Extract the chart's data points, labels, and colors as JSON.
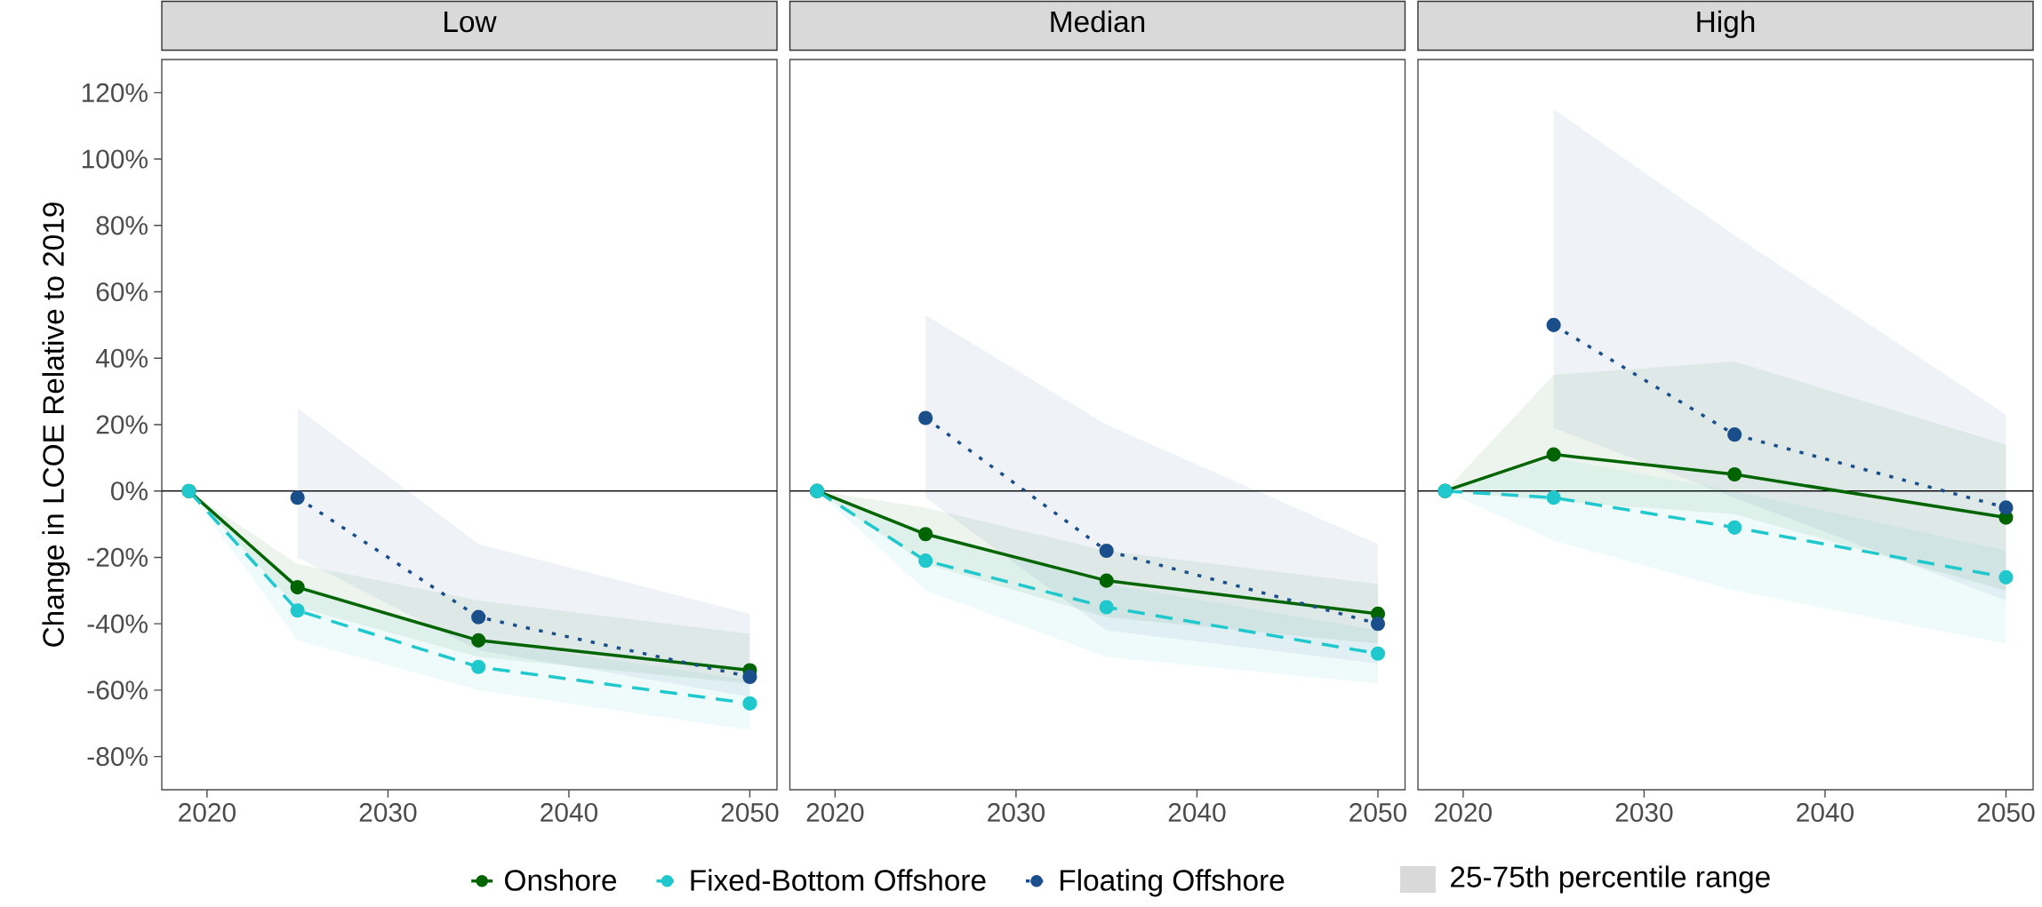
{
  "chart_data": [
    {
      "type": "line",
      "title": "Low",
      "ylabel": "Change in LCOE Relative to 2019",
      "xlim": [
        2017.5,
        2051.5
      ],
      "ylim": [
        -90,
        130
      ],
      "xticks": [
        2020,
        2030,
        2040,
        2050
      ],
      "yticks": [
        {
          "value": -80,
          "label": "-80%"
        },
        {
          "value": -60,
          "label": "-60%"
        },
        {
          "value": -40,
          "label": "-40%"
        },
        {
          "value": -20,
          "label": "-20%"
        },
        {
          "value": 0,
          "label": "0%"
        },
        {
          "value": 20,
          "label": "20%"
        },
        {
          "value": 40,
          "label": "40%"
        },
        {
          "value": 60,
          "label": "60%"
        },
        {
          "value": 80,
          "label": "80%"
        },
        {
          "value": 100,
          "label": "100%"
        },
        {
          "value": 120,
          "label": "120%"
        }
      ],
      "ref_lines": [
        {
          "axis": "y",
          "value": 0
        }
      ],
      "marker": "circle",
      "legend": "bottom",
      "annotations": [
        "25-75th percentile range"
      ],
      "series": [
        {
          "name": "Onshore",
          "color": "#006400",
          "line_style": "solid",
          "x": [
            2019,
            2025,
            2035,
            2050
          ],
          "values": [
            0,
            -29,
            -45,
            -54
          ],
          "lower": [
            0,
            -35,
            -50,
            -58
          ],
          "upper": [
            0,
            -22,
            -33,
            -43
          ]
        },
        {
          "name": "Fixed-Bottom Offshore",
          "color": "#1fc8cc",
          "line_style": "dashed",
          "x": [
            2019,
            2025,
            2035,
            2050
          ],
          "values": [
            0,
            -36,
            -53,
            -64
          ],
          "lower": [
            0,
            -45,
            -60,
            -72
          ],
          "upper": [
            0,
            -28,
            -45,
            -57
          ]
        },
        {
          "name": "Floating Offshore",
          "color": "#1a4f8b",
          "line_style": "dotted",
          "x": [
            2025,
            2035,
            2050
          ],
          "values": [
            -2,
            -38,
            -56
          ],
          "lower": [
            -20,
            -48,
            -62
          ],
          "upper": [
            25,
            -16,
            -37
          ]
        }
      ]
    },
    {
      "type": "line",
      "title": "Median",
      "xlim": [
        2017.5,
        2051.5
      ],
      "ylim": [
        -90,
        130
      ],
      "xticks": [
        2020,
        2030,
        2040,
        2050
      ],
      "tick_labels": "x",
      "ref_lines": [
        {
          "axis": "y",
          "value": 0
        }
      ],
      "marker": "circle",
      "series": [
        {
          "color": "#006400",
          "line_style": "solid",
          "x": [
            2019,
            2025,
            2035,
            2050
          ],
          "values": [
            0,
            -13,
            -27,
            -37
          ],
          "lower": [
            0,
            -22,
            -38,
            -46
          ],
          "upper": [
            0,
            -5,
            -18,
            -28
          ]
        },
        {
          "color": "#1fc8cc",
          "line_style": "dashed",
          "x": [
            2019,
            2025,
            2035,
            2050
          ],
          "values": [
            0,
            -21,
            -35,
            -49
          ],
          "lower": [
            0,
            -30,
            -50,
            -58
          ],
          "upper": [
            0,
            -12,
            -28,
            -42
          ]
        },
        {
          "color": "#1a4f8b",
          "line_style": "dotted",
          "x": [
            2025,
            2035,
            2050
          ],
          "values": [
            22,
            -18,
            -40
          ],
          "lower": [
            -2,
            -42,
            -52
          ],
          "upper": [
            53,
            20,
            -16
          ]
        }
      ]
    },
    {
      "type": "line",
      "title": "High",
      "xlim": [
        2017.5,
        2051.5
      ],
      "ylim": [
        -90,
        130
      ],
      "xticks": [
        2020,
        2030,
        2040,
        2050
      ],
      "tick_labels": "x",
      "ref_lines": [
        {
          "axis": "y",
          "value": 0
        }
      ],
      "marker": "circle",
      "series": [
        {
          "color": "#006400",
          "line_style": "solid",
          "x": [
            2019,
            2025,
            2035,
            2050
          ],
          "values": [
            0,
            11,
            5,
            -8
          ],
          "lower": [
            0,
            -3,
            -7,
            -30
          ],
          "upper": [
            0,
            35,
            39,
            14
          ]
        },
        {
          "color": "#1fc8cc",
          "line_style": "dashed",
          "x": [
            2019,
            2025,
            2035,
            2050
          ],
          "values": [
            0,
            -2,
            -11,
            -26
          ],
          "lower": [
            0,
            -15,
            -30,
            -46
          ],
          "upper": [
            0,
            10,
            0,
            -18
          ]
        },
        {
          "color": "#1a4f8b",
          "line_style": "dotted",
          "x": [
            2025,
            2035,
            2050
          ],
          "values": [
            50,
            17,
            -5
          ],
          "lower": [
            19,
            -2,
            -33
          ],
          "upper": [
            115,
            77,
            23
          ]
        }
      ]
    }
  ]
}
